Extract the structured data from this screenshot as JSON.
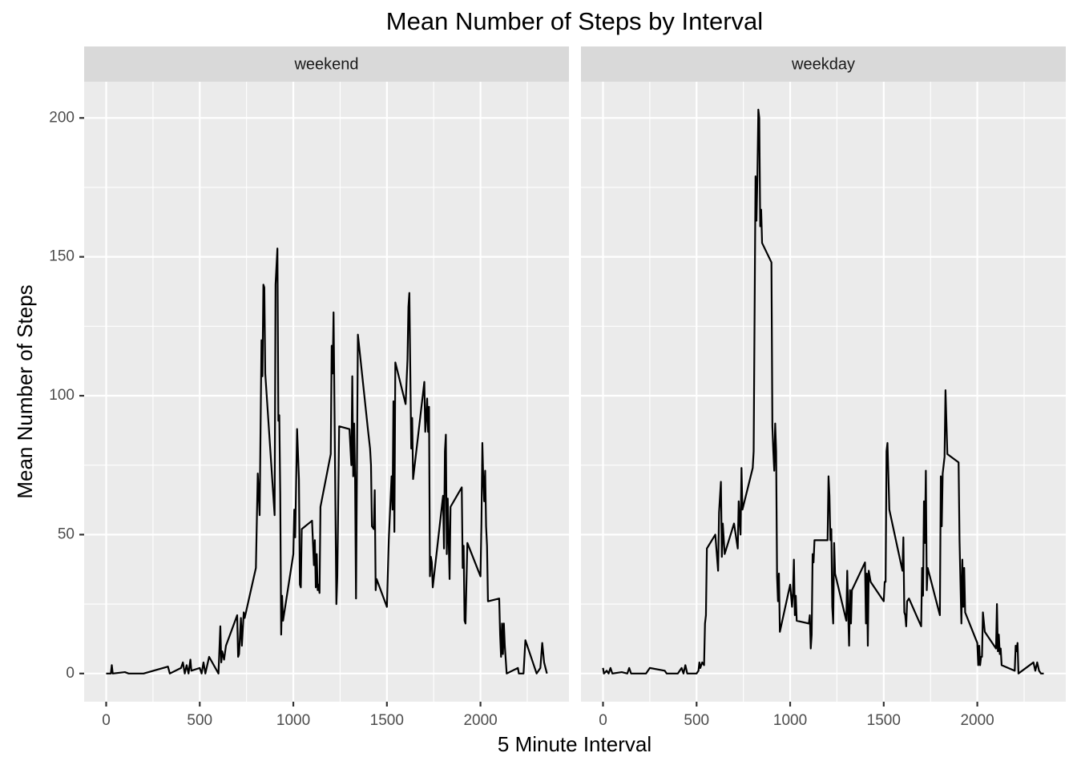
{
  "chart_data": {
    "type": "line",
    "title": "Mean Number of Steps by Interval",
    "x_label": "5 Minute Interval",
    "y_label": "Mean Number of Steps",
    "color": "#000000",
    "grid": true,
    "xlim": [
      -117.75,
      2472.75
    ],
    "ylim": [
      -10.15,
      213.05
    ],
    "xticks": [
      0,
      500,
      1000,
      1500,
      2000
    ],
    "yticks": [
      0,
      50,
      100,
      150,
      200
    ],
    "xminor": [
      250,
      750,
      1250,
      1750,
      2250
    ],
    "yminor": [
      25,
      75,
      125,
      175
    ],
    "panels": [
      {
        "label": "weekend",
        "x": [
          0,
          25,
          30,
          35,
          100,
          120,
          150,
          200,
          330,
          340,
          400,
          410,
          420,
          430,
          440,
          450,
          455,
          500,
          510,
          520,
          530,
          540,
          550,
          600,
          610,
          615,
          620,
          630,
          640,
          700,
          705,
          710,
          720,
          725,
          735,
          740,
          800,
          810,
          820,
          830,
          835,
          840,
          845,
          850,
          900,
          905,
          915,
          920,
          925,
          930,
          935,
          940,
          945,
          1000,
          1005,
          1010,
          1020,
          1030,
          1035,
          1040,
          1045,
          1100,
          1110,
          1115,
          1120,
          1125,
          1130,
          1135,
          1140,
          1145,
          1200,
          1205,
          1210,
          1215,
          1230,
          1235,
          1245,
          1300,
          1310,
          1315,
          1320,
          1325,
          1330,
          1335,
          1345,
          1400,
          1410,
          1415,
          1420,
          1430,
          1435,
          1440,
          1445,
          1500,
          1510,
          1525,
          1530,
          1535,
          1540,
          1545,
          1600,
          1610,
          1615,
          1620,
          1630,
          1635,
          1640,
          1700,
          1705,
          1710,
          1715,
          1720,
          1725,
          1730,
          1735,
          1740,
          1745,
          1800,
          1805,
          1810,
          1815,
          1820,
          1825,
          1830,
          1835,
          1840,
          1900,
          1905,
          1910,
          1915,
          1920,
          1930,
          2000,
          2005,
          2010,
          2015,
          2020,
          2025,
          2030,
          2035,
          2040,
          2100,
          2105,
          2110,
          2115,
          2120,
          2125,
          2130,
          2140,
          2200,
          2205,
          2215,
          2230,
          2240,
          2300,
          2320,
          2330,
          2340,
          2355
        ],
        "values": [
          0,
          0,
          3,
          0,
          0.5,
          0,
          0,
          0,
          2.5,
          0,
          2,
          4,
          0,
          3,
          0,
          5,
          1,
          2,
          0,
          4,
          0,
          3,
          6,
          0,
          17,
          4,
          8,
          5,
          10,
          21,
          6,
          7,
          20,
          10,
          22,
          20,
          38,
          72,
          57,
          120,
          107,
          140,
          139,
          108,
          57,
          140,
          153,
          91,
          93,
          65,
          14,
          28,
          19,
          43,
          59,
          49,
          88,
          70,
          32,
          31,
          52,
          55,
          39,
          48,
          31,
          43,
          30,
          32,
          29,
          60,
          79,
          118,
          108,
          130,
          25,
          35,
          89,
          88,
          75,
          107,
          71,
          90,
          70,
          27,
          122,
          87,
          81,
          75,
          53,
          52,
          66,
          30,
          34,
          24,
          48,
          71,
          59,
          98,
          51,
          112,
          97,
          113,
          132,
          137,
          81,
          92,
          70,
          105,
          87,
          92,
          99,
          87,
          96,
          35,
          42,
          40,
          31,
          64,
          45,
          80,
          86,
          43,
          63,
          48,
          34,
          60,
          67,
          38,
          46,
          19,
          18,
          47,
          35,
          54,
          83,
          70,
          62,
          73,
          53,
          46,
          26,
          27,
          14,
          6,
          18,
          7,
          18,
          10,
          0,
          2,
          0,
          0,
          0,
          12,
          0,
          2,
          11,
          4,
          0
        ]
      },
      {
        "label": "weekday",
        "x": [
          0,
          5,
          20,
          30,
          40,
          50,
          100,
          130,
          140,
          150,
          200,
          230,
          250,
          330,
          340,
          400,
          420,
          430,
          440,
          450,
          500,
          510,
          515,
          520,
          530,
          540,
          545,
          550,
          555,
          600,
          615,
          620,
          630,
          635,
          640,
          650,
          700,
          720,
          725,
          730,
          735,
          740,
          745,
          800,
          805,
          815,
          820,
          825,
          830,
          835,
          840,
          845,
          850,
          900,
          905,
          910,
          915,
          920,
          925,
          930,
          935,
          940,
          945,
          1000,
          1010,
          1015,
          1020,
          1025,
          1030,
          1035,
          1100,
          1105,
          1110,
          1115,
          1120,
          1125,
          1130,
          1200,
          1205,
          1210,
          1215,
          1220,
          1225,
          1230,
          1235,
          1240,
          1300,
          1305,
          1310,
          1315,
          1320,
          1325,
          1330,
          1400,
          1405,
          1410,
          1415,
          1420,
          1430,
          1500,
          1505,
          1510,
          1515,
          1520,
          1530,
          1600,
          1605,
          1610,
          1615,
          1620,
          1625,
          1635,
          1700,
          1705,
          1710,
          1715,
          1720,
          1725,
          1730,
          1735,
          1800,
          1805,
          1810,
          1815,
          1825,
          1830,
          1840,
          1900,
          1905,
          1915,
          1920,
          1925,
          1930,
          1935,
          2000,
          2005,
          2010,
          2015,
          2020,
          2025,
          2030,
          2040,
          2100,
          2105,
          2110,
          2115,
          2120,
          2125,
          2130,
          2200,
          2205,
          2210,
          2215,
          2220,
          2300,
          2310,
          2320,
          2330,
          2340,
          2355
        ],
        "values": [
          2,
          0,
          1,
          0,
          2,
          0,
          0.5,
          0,
          2,
          0,
          0,
          0,
          2,
          1,
          0,
          0,
          2,
          0,
          3,
          0,
          0,
          1,
          4,
          2,
          4,
          3,
          18,
          21,
          45,
          50,
          37,
          58,
          69,
          42,
          54,
          43,
          54,
          45,
          62,
          55,
          50,
          74,
          59,
          74,
          80,
          179,
          163,
          179,
          203,
          200,
          161,
          167,
          155,
          148,
          89,
          80,
          73,
          90,
          80,
          35,
          26,
          36,
          15,
          32,
          24,
          29,
          41,
          21,
          28,
          19,
          18,
          21,
          9,
          14,
          43,
          40,
          48,
          48,
          71,
          64,
          48,
          52,
          24,
          18,
          47,
          36,
          19,
          37,
          22,
          10,
          30,
          18,
          30,
          40,
          18,
          36,
          10,
          37,
          33,
          26,
          33,
          33,
          80,
          83,
          59,
          37,
          49,
          22,
          21,
          17,
          26,
          27,
          17,
          38,
          28,
          62,
          47,
          73,
          30,
          38,
          21,
          71,
          53,
          72,
          78,
          102,
          79,
          76,
          48,
          18,
          41,
          24,
          38,
          22,
          11,
          3,
          10,
          3,
          6,
          6,
          22,
          15,
          9,
          25,
          8,
          14,
          7,
          9,
          3,
          1,
          10,
          8,
          11,
          0,
          4,
          1,
          4,
          1,
          0,
          0
        ]
      }
    ]
  }
}
